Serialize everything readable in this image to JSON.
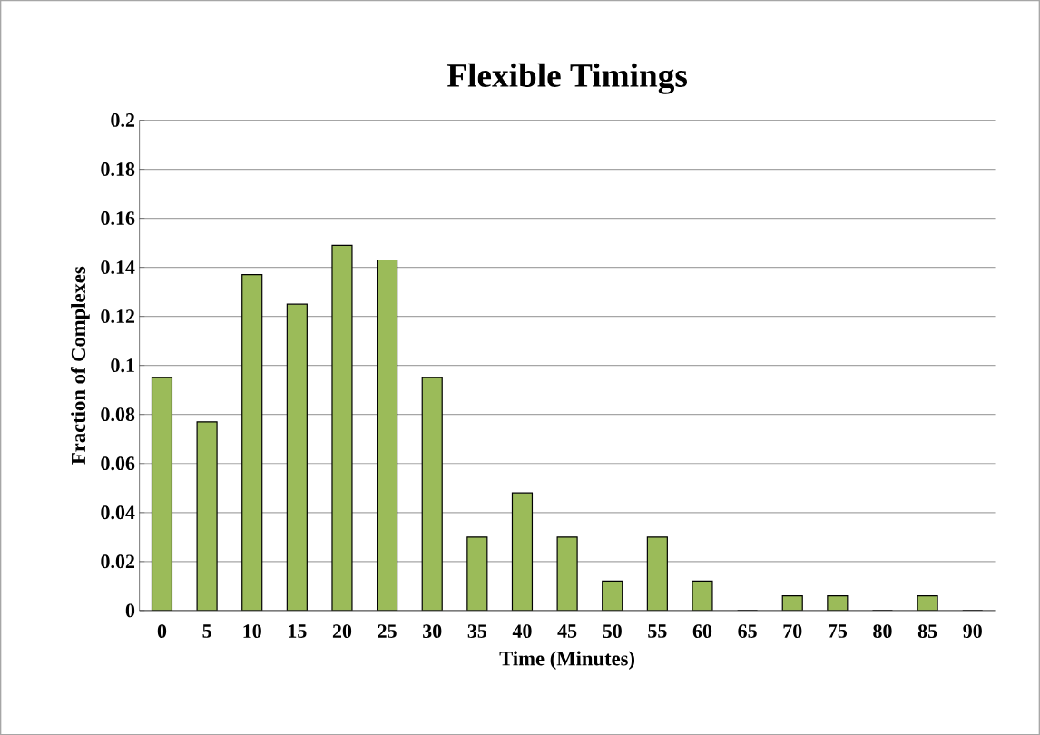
{
  "chart_data": {
    "type": "bar",
    "title": "Flexible Timings",
    "xlabel": "Time (Minutes)",
    "ylabel": "Fraction of Complexes",
    "categories": [
      "0",
      "5",
      "10",
      "15",
      "20",
      "25",
      "30",
      "35",
      "40",
      "45",
      "50",
      "55",
      "60",
      "65",
      "70",
      "75",
      "80",
      "85",
      "90"
    ],
    "values": [
      0.095,
      0.077,
      0.137,
      0.125,
      0.149,
      0.143,
      0.095,
      0.03,
      0.048,
      0.03,
      0.012,
      0.03,
      0.012,
      0,
      0.006,
      0.006,
      0,
      0.006,
      0
    ],
    "color": "#9bbb59",
    "ylim": [
      0,
      0.2
    ],
    "yticks": [
      0,
      0.02,
      0.04,
      0.06,
      0.08,
      0.1,
      0.12,
      0.14,
      0.16,
      0.18,
      0.2
    ],
    "grid": "y"
  }
}
